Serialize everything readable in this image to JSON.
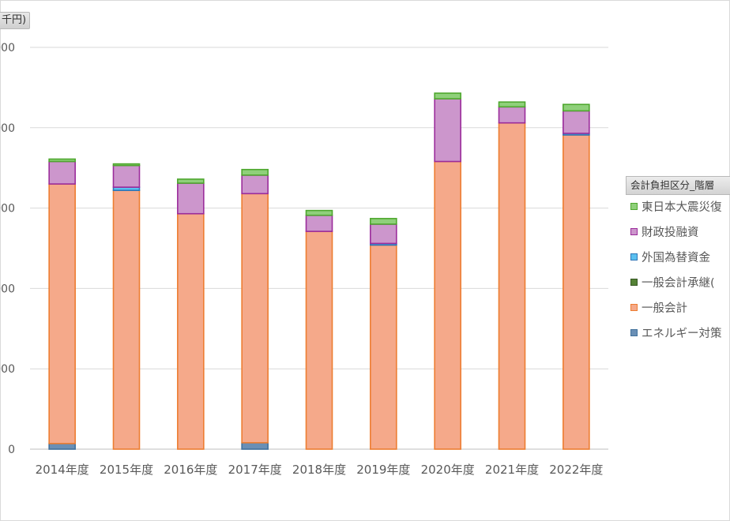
{
  "unit_label": "千円)",
  "legend_title": "会計負担区分_階層",
  "chart_data": {
    "type": "bar",
    "stacked": true,
    "categories": [
      "2014年度",
      "2015年度",
      "2016年度",
      "2017年度",
      "2018年度",
      "2019年度",
      "2020年度",
      "2021年度",
      "2022年度"
    ],
    "y_ticks": [
      "000",
      "000",
      "000",
      "000",
      "000",
      "0"
    ],
    "ylim": [
      0,
      5
    ],
    "grid": true,
    "legend_position": "right",
    "series": [
      {
        "name": "エネルギー対策",
        "fill": "#6a8fb5",
        "stroke": "#41719c",
        "values": [
          0.07,
          0.0,
          0.0,
          0.08,
          0.0,
          0.0,
          0.0,
          0.0,
          0.0
        ]
      },
      {
        "name": "一般会計",
        "fill": "#f5a98a",
        "stroke": "#ed7d31",
        "values": [
          3.23,
          3.22,
          2.93,
          3.1,
          2.71,
          2.54,
          3.58,
          4.06,
          3.91
        ]
      },
      {
        "name": "一般会計承継(",
        "fill": "#548235",
        "stroke": "#375623",
        "values": [
          0.0,
          0.0,
          0.0,
          0.0,
          0.0,
          0.0,
          0.0,
          0.0,
          0.0
        ]
      },
      {
        "name": "外国為替資金",
        "fill": "#5bc0f0",
        "stroke": "#2e75b6",
        "values": [
          0.0,
          0.04,
          0.0,
          0.0,
          0.0,
          0.02,
          0.0,
          0.0,
          0.02
        ]
      },
      {
        "name": "財政投融資",
        "fill": "#cc96cc",
        "stroke": "#9b2c9b",
        "values": [
          0.28,
          0.27,
          0.38,
          0.23,
          0.2,
          0.24,
          0.78,
          0.2,
          0.28
        ]
      },
      {
        "name": "東日本大震災復",
        "fill": "#8fd07a",
        "stroke": "#4ea72e",
        "values": [
          0.03,
          0.02,
          0.05,
          0.07,
          0.06,
          0.07,
          0.07,
          0.06,
          0.08
        ]
      }
    ]
  }
}
